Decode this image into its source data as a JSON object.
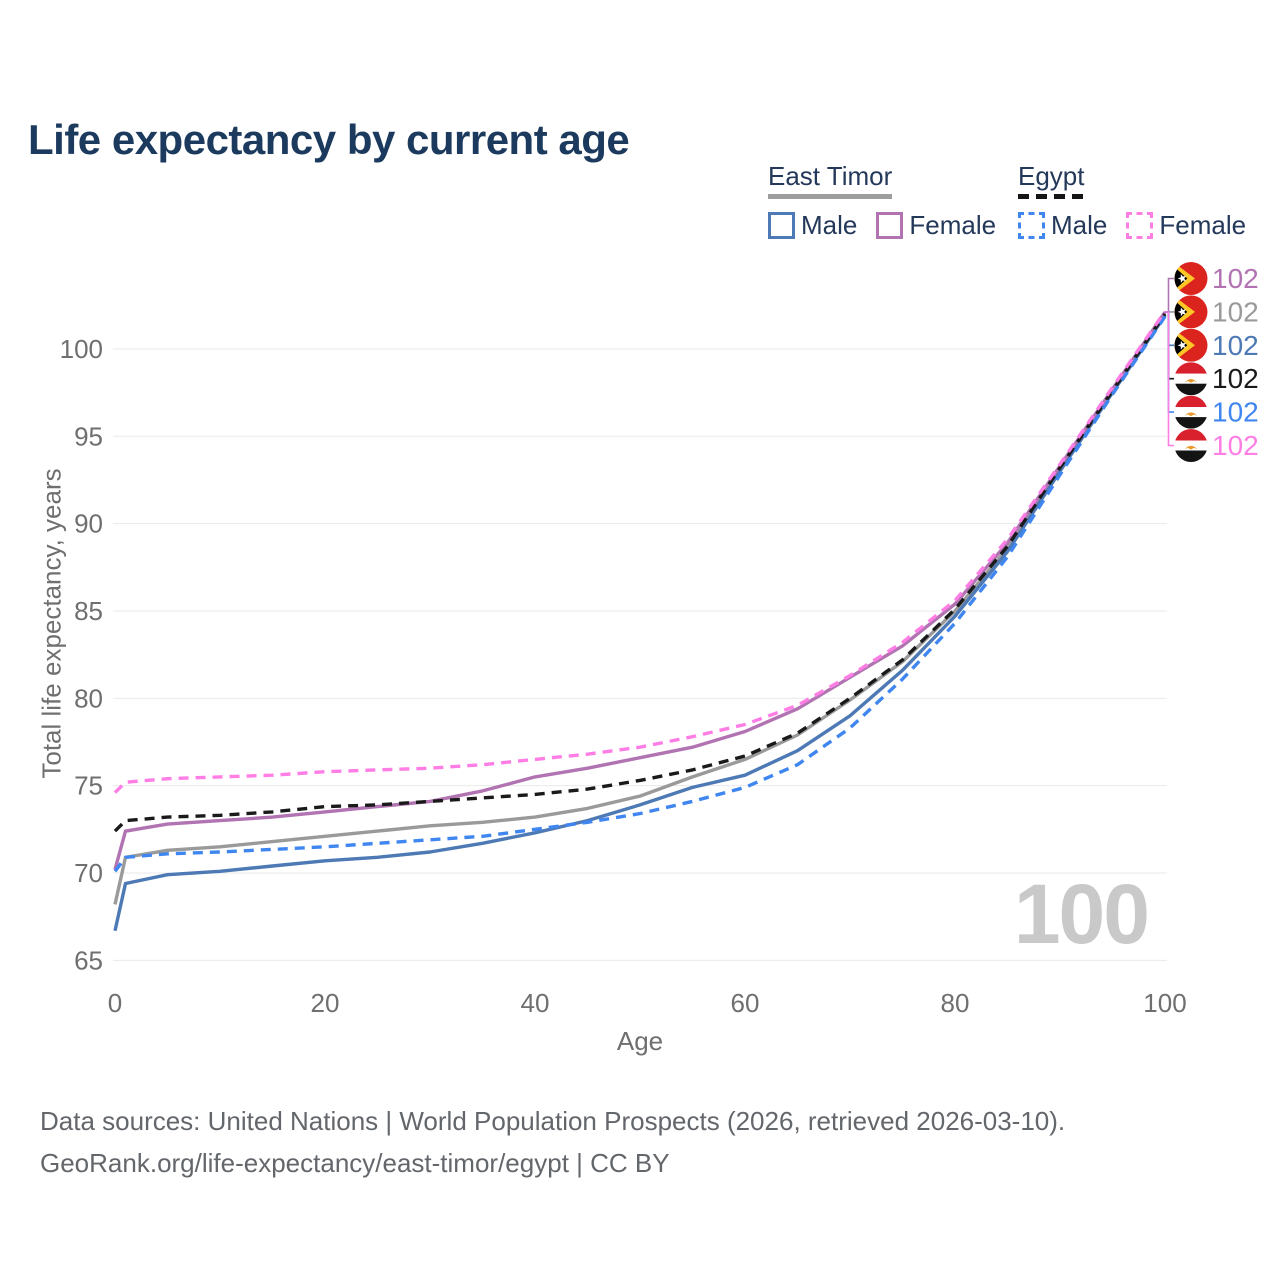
{
  "title": "Life expectancy by current age",
  "legend": {
    "groups": [
      {
        "country": "East Timor",
        "style": "solid",
        "underline_color": "#9e9e9e",
        "items": [
          {
            "label": "Male",
            "color": "#4d79b5"
          },
          {
            "label": "Female",
            "color": "#b273b2"
          }
        ]
      },
      {
        "country": "Egypt",
        "style": "dashed",
        "underline_color": "#151515",
        "items": [
          {
            "label": "Male",
            "color": "#3f86f0"
          },
          {
            "label": "Female",
            "color": "#ff7ee6"
          }
        ]
      }
    ]
  },
  "chart_data": {
    "type": "line",
    "title": "Life expectancy by current age",
    "xlabel": "Age",
    "ylabel": "Total life expectancy, years",
    "xlim": [
      0,
      100
    ],
    "ylim": [
      65,
      102.5
    ],
    "x_ticks": [
      0,
      20,
      40,
      60,
      80,
      100
    ],
    "y_ticks": [
      65,
      70,
      75,
      80,
      85,
      90,
      95,
      100
    ],
    "grid": "horizontal",
    "legend_position": "top-right",
    "x": [
      0,
      1,
      5,
      10,
      15,
      20,
      25,
      30,
      35,
      40,
      45,
      50,
      55,
      60,
      65,
      70,
      75,
      80,
      85,
      90,
      95,
      100
    ],
    "series": [
      {
        "name": "East Timor Both sexes",
        "country": "East Timor",
        "sex": "both",
        "color": "#9a9a9a",
        "dashed": false,
        "end_label": "102",
        "values": [
          68.2,
          70.9,
          71.3,
          71.5,
          71.8,
          72.1,
          72.4,
          72.7,
          72.9,
          73.2,
          73.7,
          74.4,
          75.5,
          76.5,
          77.9,
          79.9,
          82.1,
          85.0,
          88.6,
          93.1,
          97.6,
          102.0
        ]
      },
      {
        "name": "East Timor Male",
        "country": "East Timor",
        "sex": "male",
        "color": "#4d79b5",
        "dashed": false,
        "end_label": "102",
        "values": [
          66.7,
          69.4,
          69.9,
          70.1,
          70.4,
          70.7,
          70.9,
          71.2,
          71.7,
          72.3,
          73.0,
          73.9,
          74.9,
          75.6,
          77.0,
          79.0,
          81.6,
          84.7,
          88.4,
          93.0,
          97.5,
          101.9
        ]
      },
      {
        "name": "East Timor Female",
        "country": "East Timor",
        "sex": "female",
        "color": "#b273b2",
        "dashed": false,
        "end_label": "102",
        "values": [
          70.2,
          72.4,
          72.8,
          73.0,
          73.2,
          73.5,
          73.8,
          74.1,
          74.7,
          75.5,
          76.0,
          76.6,
          77.2,
          78.1,
          79.4,
          81.2,
          83.0,
          85.4,
          88.9,
          93.3,
          97.7,
          102.1
        ]
      },
      {
        "name": "Egypt Both sexes",
        "country": "Egypt",
        "sex": "both",
        "color": "#1a1a1a",
        "dashed": true,
        "end_label": "102",
        "values": [
          72.4,
          73.0,
          73.2,
          73.3,
          73.5,
          73.8,
          73.9,
          74.1,
          74.3,
          74.5,
          74.8,
          75.3,
          75.9,
          76.7,
          78.0,
          80.0,
          82.2,
          85.1,
          88.7,
          93.2,
          97.6,
          102.0
        ]
      },
      {
        "name": "Egypt Male",
        "country": "Egypt",
        "sex": "male",
        "color": "#3f86f0",
        "dashed": true,
        "end_label": "102",
        "values": [
          70.1,
          70.9,
          71.1,
          71.2,
          71.35,
          71.5,
          71.7,
          71.9,
          72.1,
          72.5,
          72.9,
          73.4,
          74.1,
          74.9,
          76.2,
          78.3,
          81.1,
          84.3,
          88.1,
          92.8,
          97.4,
          101.85
        ]
      },
      {
        "name": "Egypt Female",
        "country": "Egypt",
        "sex": "female",
        "color": "#ff7ee6",
        "dashed": true,
        "end_label": "102",
        "values": [
          74.6,
          75.2,
          75.4,
          75.5,
          75.6,
          75.8,
          75.9,
          76.0,
          76.2,
          76.5,
          76.8,
          77.2,
          77.8,
          78.5,
          79.6,
          81.3,
          83.2,
          85.6,
          89.1,
          93.4,
          97.8,
          102.15
        ]
      }
    ]
  },
  "side_labels": {
    "rows": [
      {
        "flag": "east-timor",
        "value": "102",
        "color": "#b273b2"
      },
      {
        "flag": "east-timor",
        "value": "102",
        "color": "#9a9a9a"
      },
      {
        "flag": "east-timor",
        "value": "102",
        "color": "#4d79b5"
      },
      {
        "flag": "egypt",
        "value": "102",
        "color": "#1a1a1a"
      },
      {
        "flag": "egypt",
        "value": "102",
        "color": "#3f86f0"
      },
      {
        "flag": "egypt",
        "value": "102",
        "color": "#ff7ee6"
      }
    ]
  },
  "watermark": "100",
  "footer": {
    "line1": "Data sources: United Nations | World Population Prospects (2026, retrieved 2026-03-10).",
    "line2": "GeoRank.org/life-expectancy/east-timor/egypt | CC BY"
  }
}
